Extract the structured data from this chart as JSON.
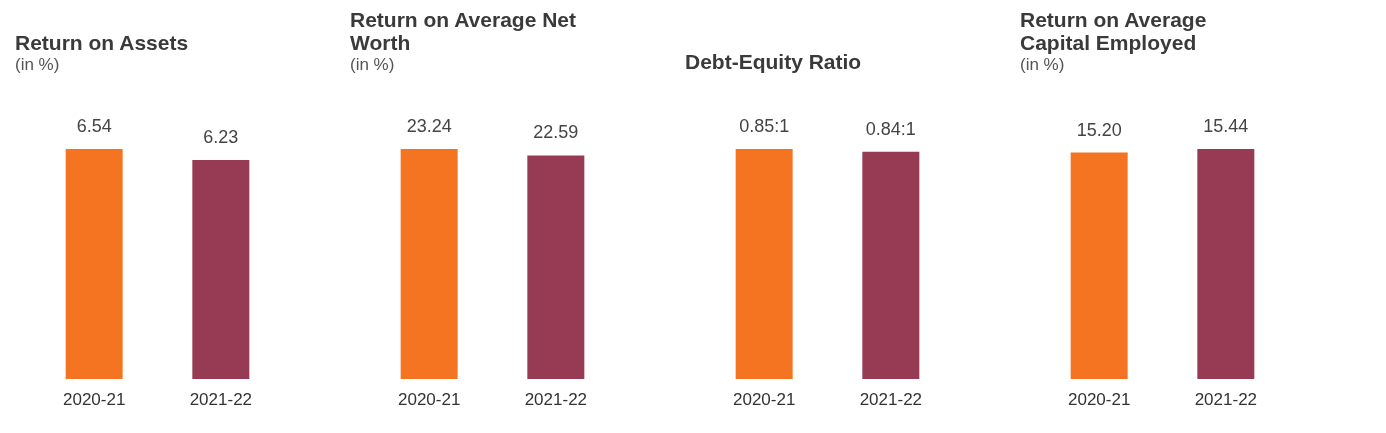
{
  "chart_data": [
    {
      "type": "bar",
      "title": "Return on Assets",
      "subtitle": "(in %)",
      "categories": [
        "2020-21",
        "2021-22"
      ],
      "values": [
        6.54,
        6.23
      ],
      "colors": [
        "#f47421",
        "#973a53"
      ],
      "value_labels": [
        "6.54",
        "6.23"
      ],
      "tick_labels": "x"
    },
    {
      "type": "bar",
      "title": "Return on Average Net Worth",
      "subtitle": "(in %)",
      "categories": [
        "2020-21",
        "2021-22"
      ],
      "values": [
        23.24,
        22.59
      ],
      "colors": [
        "#f47421",
        "#973a53"
      ],
      "value_labels": [
        "23.24",
        "22.59"
      ],
      "tick_labels": "x"
    },
    {
      "type": "bar",
      "title": "Debt-Equity Ratio",
      "categories": [
        "2020-21",
        "2021-22"
      ],
      "values": [
        0.85,
        0.84
      ],
      "colors": [
        "#f47421",
        "#973a53"
      ],
      "value_labels": [
        "0.85:1",
        "0.84:1"
      ],
      "tick_labels": "x"
    },
    {
      "type": "bar",
      "title": "Return on Average Capital Employed",
      "subtitle": "(in %)",
      "categories": [
        "2020-21",
        "2021-22"
      ],
      "values": [
        15.2,
        15.44
      ],
      "colors": [
        "#f47421",
        "#973a53"
      ],
      "value_labels": [
        "15.20",
        "15.44"
      ],
      "tick_labels": "x"
    }
  ]
}
